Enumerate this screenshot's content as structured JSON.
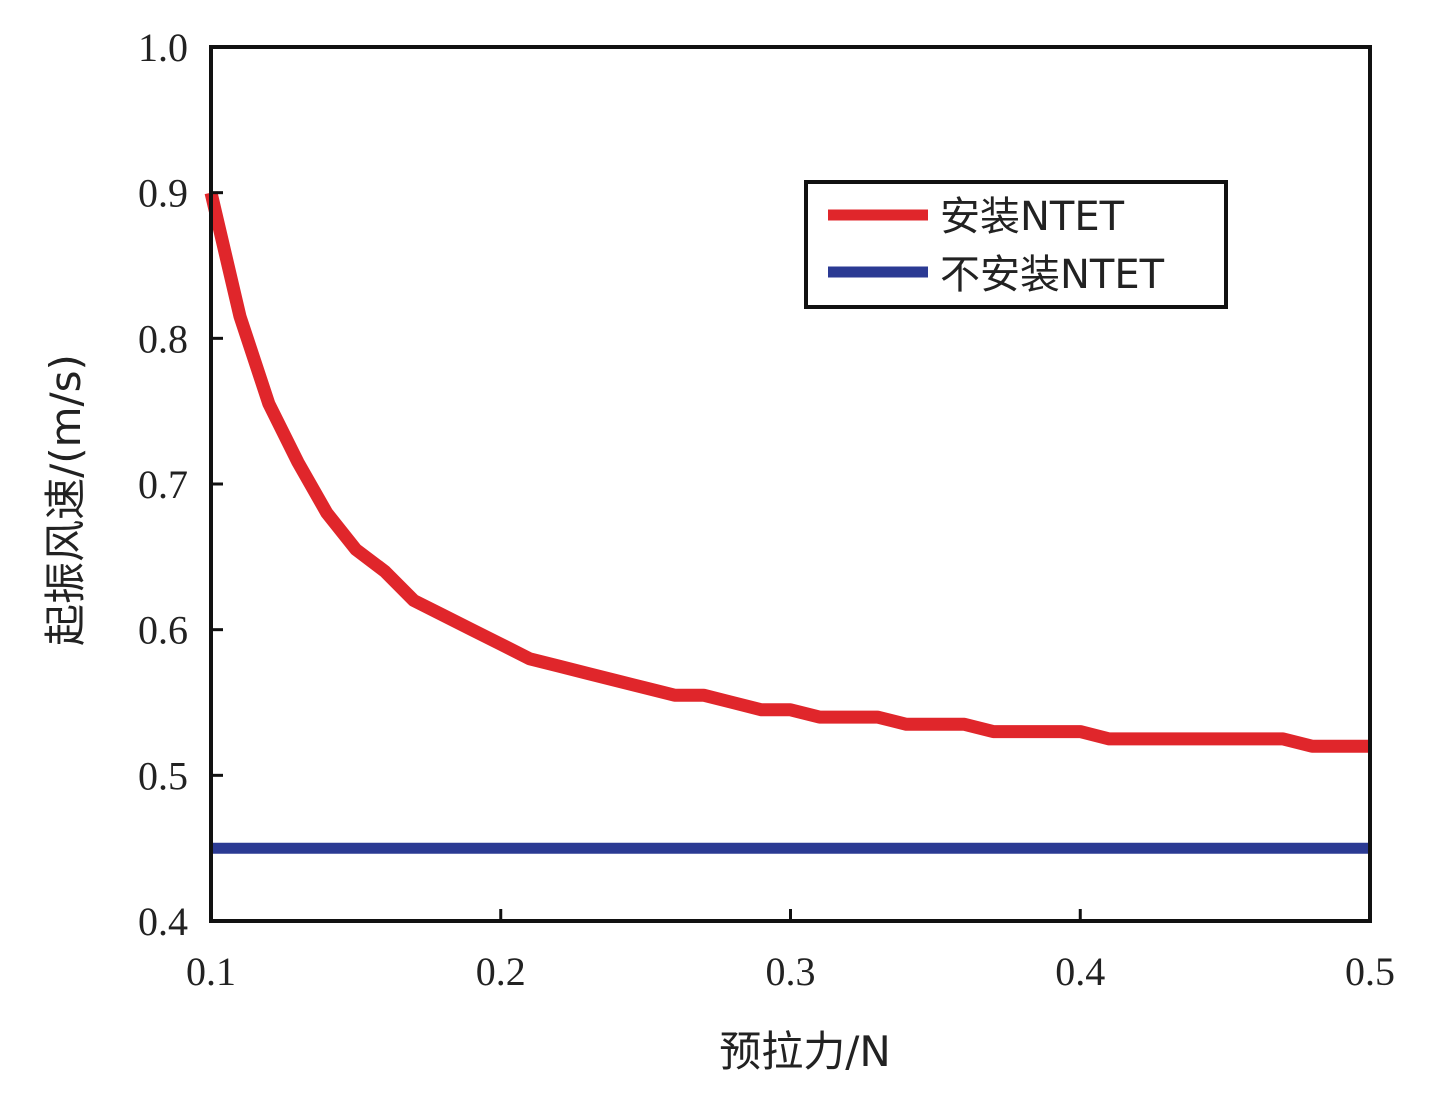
{
  "chart_data": {
    "type": "line",
    "title": "",
    "xlabel": "预拉力/N",
    "ylabel": "起振风速/(m/s)",
    "xlim": [
      0.1,
      0.5
    ],
    "ylim": [
      0.4,
      1.0
    ],
    "xticks": [
      0.1,
      0.2,
      0.3,
      0.4,
      0.5
    ],
    "xtick_labels": [
      "0.1",
      "0.2",
      "0.3",
      "0.4",
      "0.5"
    ],
    "yticks": [
      0.4,
      0.5,
      0.6,
      0.7,
      0.8,
      0.9,
      1.0
    ],
    "ytick_labels": [
      "0.4",
      "0.5",
      "0.6",
      "0.7",
      "0.8",
      "0.9",
      "1.0"
    ],
    "grid": false,
    "legend_position": "top-right",
    "series": [
      {
        "name": "安装NTET",
        "color": "#e0262b",
        "x": [
          0.1,
          0.11,
          0.12,
          0.13,
          0.14,
          0.15,
          0.16,
          0.17,
          0.18,
          0.19,
          0.2,
          0.21,
          0.22,
          0.23,
          0.24,
          0.25,
          0.26,
          0.27,
          0.28,
          0.29,
          0.3,
          0.31,
          0.32,
          0.33,
          0.34,
          0.35,
          0.36,
          0.37,
          0.38,
          0.39,
          0.4,
          0.41,
          0.42,
          0.43,
          0.44,
          0.45,
          0.46,
          0.47,
          0.48,
          0.49,
          0.5
        ],
        "y": [
          0.9,
          0.815,
          0.755,
          0.715,
          0.68,
          0.655,
          0.64,
          0.62,
          0.61,
          0.6,
          0.59,
          0.58,
          0.575,
          0.57,
          0.565,
          0.56,
          0.555,
          0.555,
          0.55,
          0.545,
          0.545,
          0.54,
          0.54,
          0.54,
          0.535,
          0.535,
          0.535,
          0.53,
          0.53,
          0.53,
          0.53,
          0.525,
          0.525,
          0.525,
          0.525,
          0.525,
          0.525,
          0.525,
          0.52,
          0.52,
          0.52
        ]
      },
      {
        "name": "不安装NTET",
        "color": "#2b3a93",
        "x": [
          0.1,
          0.5
        ],
        "y": [
          0.45,
          0.45
        ]
      }
    ]
  }
}
